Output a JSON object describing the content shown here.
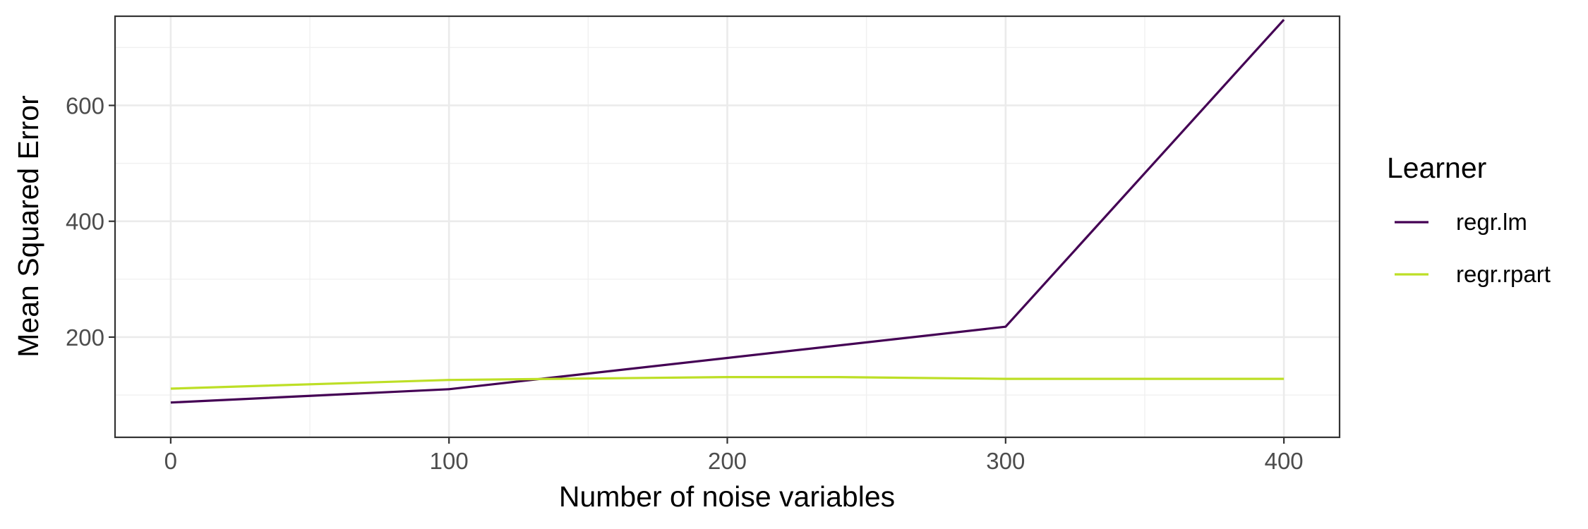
{
  "chart_data": {
    "type": "line",
    "title": "",
    "xlabel": "Number of noise variables",
    "ylabel": "Mean Squared Error",
    "xlim": [
      -20,
      420
    ],
    "ylim": [
      27,
      754
    ],
    "x_ticks": [
      0,
      100,
      200,
      300,
      400
    ],
    "y_ticks": [
      200,
      400,
      600
    ],
    "x_minor": [
      50,
      150,
      250,
      350
    ],
    "y_minor": [
      100,
      300,
      500,
      700
    ],
    "grid": true,
    "legend": {
      "title": "Learner",
      "position": "right"
    },
    "series": [
      {
        "name": "regr.lm",
        "color": "#440154",
        "x": [
          0,
          100,
          300,
          400
        ],
        "y": [
          87,
          110,
          218,
          748
        ]
      },
      {
        "name": "regr.rpart",
        "color": "#bddf26",
        "x": [
          0,
          100,
          200,
          240,
          300,
          400
        ],
        "y": [
          111,
          126,
          131,
          131,
          128,
          128
        ]
      }
    ]
  }
}
